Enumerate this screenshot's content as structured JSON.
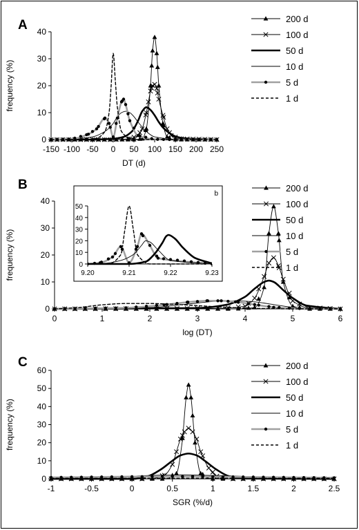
{
  "colors": {
    "background": "#ffffff",
    "ink": "#000000",
    "gray_series": "#a0a0a0",
    "dark_gray_series": "#808080"
  },
  "legend_items": [
    "200 d",
    "100 d",
    "50 d",
    "10 d",
    "5 d",
    "1 d"
  ],
  "chart_data": [
    {
      "panel": "A",
      "type": "line",
      "xlabel": "DT (d)",
      "ylabel": "frequency (%)",
      "xlim": [
        -150,
        250
      ],
      "ylim": [
        0,
        40
      ],
      "xticks": [
        -150,
        -100,
        -50,
        0,
        50,
        100,
        150,
        200,
        250
      ],
      "yticks": [
        0,
        10,
        20,
        30,
        40
      ],
      "legend_position": "top-right",
      "series": [
        {
          "name": "200 d",
          "style": "thin-black-triangle",
          "x": [
            -150,
            20,
            50,
            70,
            80,
            90,
            95,
            100,
            105,
            110,
            120,
            130,
            150,
            250
          ],
          "y": [
            0,
            0,
            0,
            0.3,
            4,
            20,
            33,
            38,
            32,
            20,
            6,
            1,
            0,
            0
          ]
        },
        {
          "name": "100 d",
          "style": "thin-black-cross",
          "x": [
            -150,
            0,
            40,
            60,
            70,
            80,
            85,
            90,
            95,
            100,
            105,
            110,
            120,
            130,
            140,
            160,
            250
          ],
          "y": [
            0,
            0,
            0.3,
            1.5,
            4,
            10,
            14,
            18,
            20,
            20.5,
            19,
            15,
            9,
            4,
            1.5,
            0.3,
            0
          ]
        },
        {
          "name": "50 d",
          "style": "thick-black",
          "x": [
            -150,
            -50,
            0,
            25,
            45,
            60,
            70,
            80,
            90,
            100,
            110,
            120,
            135,
            150,
            170,
            200,
            250
          ],
          "y": [
            0,
            0,
            0.3,
            1,
            3,
            7,
            10.5,
            12,
            11,
            9,
            6.5,
            4.5,
            2.5,
            1.2,
            0.5,
            0.2,
            0
          ]
        },
        {
          "name": "10 d",
          "style": "thin-black",
          "x": [
            -150,
            -100,
            -50,
            -20,
            0,
            10,
            20,
            30,
            40,
            50,
            60,
            80,
            100,
            150,
            250
          ],
          "y": [
            0,
            0.2,
            1,
            3,
            6,
            8.5,
            10,
            10.5,
            10,
            8.5,
            6.5,
            3,
            1,
            0.1,
            0
          ]
        },
        {
          "name": "5 d",
          "style": "gray-thick-dots",
          "x": [
            -150,
            -100,
            -60,
            -40,
            -20,
            -10,
            0,
            10,
            20,
            25,
            30,
            40,
            60,
            100,
            150,
            250
          ],
          "y": [
            0,
            0.2,
            2,
            4,
            8,
            6,
            1,
            8,
            14,
            15,
            13,
            7,
            1.5,
            0.1,
            0,
            0
          ]
        },
        {
          "name": "1 d",
          "style": "dashed-black",
          "x": [
            -150,
            -60,
            -40,
            -20,
            -10,
            -5,
            0,
            5,
            10,
            20,
            40,
            60,
            250
          ],
          "y": [
            0,
            0,
            0.5,
            3,
            10,
            20,
            32,
            22,
            12,
            3,
            0.5,
            0,
            0
          ]
        }
      ]
    },
    {
      "panel": "B",
      "type": "line",
      "xlabel": "log (DT)",
      "ylabel": "frequency (%)",
      "xlim": [
        0,
        6
      ],
      "ylim": [
        0,
        40
      ],
      "xticks": [
        0,
        1,
        2,
        3,
        4,
        5,
        6
      ],
      "yticks": [
        0,
        10,
        20,
        30,
        40
      ],
      "legend_position": "top-right",
      "series": [
        {
          "name": "200 d",
          "style": "thin-black-triangle",
          "x": [
            0,
            3.8,
            4.2,
            4.4,
            4.5,
            4.6,
            4.7,
            4.8,
            5.0,
            5.3,
            6
          ],
          "y": [
            0,
            0,
            0.5,
            8,
            28,
            38,
            28,
            10,
            1,
            0,
            0
          ]
        },
        {
          "name": "100 d",
          "style": "thin-black-cross",
          "x": [
            0,
            3.5,
            4.0,
            4.2,
            4.4,
            4.5,
            4.6,
            4.7,
            4.8,
            5.0,
            5.3,
            6
          ],
          "y": [
            0,
            0.2,
            1,
            4,
            12,
            17,
            19,
            16,
            11,
            3,
            0.5,
            0
          ]
        },
        {
          "name": "50 d",
          "style": "thick-black",
          "x": [
            0,
            3.0,
            3.6,
            4.0,
            4.2,
            4.4,
            4.5,
            4.6,
            4.8,
            5.0,
            5.3,
            6
          ],
          "y": [
            0,
            0.3,
            1.5,
            4.5,
            7.5,
            10,
            10.5,
            10,
            7,
            4,
            1.2,
            0
          ]
        },
        {
          "name": "10 d",
          "style": "thin-black",
          "x": [
            0,
            2.0,
            2.8,
            3.4,
            3.8,
            4.2,
            4.6,
            5.0,
            5.5,
            6
          ],
          "y": [
            0,
            0.5,
            1.8,
            2.8,
            3,
            2.6,
            1.6,
            0.6,
            0.1,
            0
          ]
        },
        {
          "name": "5 d",
          "style": "gray-thick-dots",
          "x": [
            0,
            1.5,
            2.3,
            2.8,
            3.2,
            3.5,
            3.8,
            4.2,
            4.6,
            5.0,
            5.5,
            6
          ],
          "y": [
            0,
            0.4,
            1.5,
            2.5,
            3,
            3,
            2.6,
            1.6,
            0.6,
            0.2,
            0,
            0
          ]
        },
        {
          "name": "1 d",
          "style": "dashed-black",
          "x": [
            0,
            0.5,
            1.0,
            1.5,
            2.0,
            2.5,
            3.0,
            3.5,
            4.0,
            4.5,
            5.0,
            6
          ],
          "y": [
            0,
            0.5,
            1.5,
            2,
            2,
            1.7,
            1.2,
            0.7,
            0.3,
            0.1,
            0,
            0
          ]
        }
      ],
      "inset": {
        "label": "b",
        "xlim": [
          9.2,
          9.23
        ],
        "ylim": [
          0,
          50
        ],
        "xticks": [
          "9.20",
          "9.21",
          "9.22",
          "9.23"
        ],
        "yticks": [
          0,
          10,
          20,
          30,
          40,
          50
        ],
        "series": [
          {
            "name": "1 d",
            "style": "dashed-black",
            "x": [
              9.2,
              9.205,
              9.208,
              9.209,
              9.21,
              9.211,
              9.212,
              9.215,
              9.23
            ],
            "y": [
              0,
              0,
              8,
              30,
              50,
              30,
              8,
              0,
              0
            ]
          },
          {
            "name": "5 d",
            "style": "gray-thick-dots",
            "x": [
              9.2,
              9.203,
              9.206,
              9.208,
              9.21,
              9.212,
              9.213,
              9.215,
              9.217,
              9.23
            ],
            "y": [
              0,
              1,
              6,
              15,
              1,
              15,
              26,
              16,
              5,
              0
            ]
          },
          {
            "name": "10 d",
            "style": "thin-black",
            "x": [
              9.2,
              9.204,
              9.208,
              9.211,
              9.213,
              9.214,
              9.215,
              9.217,
              9.22,
              9.23
            ],
            "y": [
              0,
              0.5,
              3,
              8,
              16,
              20,
              19,
              12,
              3,
              0
            ]
          },
          {
            "name": "50 d",
            "style": "thick-black",
            "x": [
              9.2,
              9.21,
              9.214,
              9.216,
              9.218,
              9.219,
              9.2195,
              9.221,
              9.223,
              9.226,
              9.23
            ],
            "y": [
              0,
              0,
              2,
              8,
              18,
              24,
              25,
              22,
              14,
              5,
              0.5
            ]
          }
        ]
      }
    },
    {
      "panel": "C",
      "type": "line",
      "xlabel": "SGR (%/d)",
      "ylabel": "frequency (%)",
      "xlim": [
        -1,
        2.5
      ],
      "ylim": [
        0,
        60
      ],
      "xticks": [
        -1,
        -0.5,
        0,
        0.5,
        1,
        1.5,
        2,
        2.5
      ],
      "yticks": [
        0,
        10,
        20,
        30,
        40,
        50,
        60
      ],
      "legend_position": "top-right",
      "series": [
        {
          "name": "200 d",
          "style": "thin-black-triangle",
          "x": [
            -1,
            0.4,
            0.55,
            0.62,
            0.67,
            0.7,
            0.73,
            0.78,
            0.85,
            1.0,
            2.5
          ],
          "y": [
            0,
            0,
            3,
            20,
            45,
            52,
            45,
            20,
            3,
            0,
            0
          ]
        },
        {
          "name": "100 d",
          "style": "thin-black-cross",
          "x": [
            -1,
            0.2,
            0.4,
            0.5,
            0.55,
            0.6,
            0.65,
            0.7,
            0.75,
            0.8,
            0.85,
            0.95,
            1.05,
            1.2,
            2.5
          ],
          "y": [
            0,
            0,
            2,
            8,
            15,
            22,
            26,
            28,
            26,
            22,
            15,
            6,
            1.5,
            0,
            0
          ]
        },
        {
          "name": "50 d",
          "style": "thick-black",
          "x": [
            -1,
            0,
            0.2,
            0.35,
            0.5,
            0.6,
            0.7,
            0.8,
            0.9,
            1.05,
            1.2,
            1.4,
            2.5
          ],
          "y": [
            0,
            0,
            1.5,
            5,
            10,
            13,
            14,
            13,
            10,
            5,
            1.5,
            0.2,
            0
          ]
        },
        {
          "name": "10 d",
          "style": "thin-black",
          "x": [
            -1,
            -0.5,
            0,
            0.3,
            0.6,
            0.9,
            1.3,
            1.8,
            2.5
          ],
          "y": [
            0.2,
            0.8,
            1.5,
            2,
            2.2,
            2,
            1.5,
            0.8,
            0.2
          ]
        },
        {
          "name": "5 d",
          "style": "gray-thick-dots",
          "x": [
            -1,
            -0.5,
            0,
            0.5,
            1.0,
            1.5,
            2.0,
            2.5
          ],
          "y": [
            0.8,
            1,
            1.2,
            1.3,
            1.2,
            1,
            0.8,
            0.6
          ]
        },
        {
          "name": "1 d",
          "style": "dashed-black",
          "x": [
            -1,
            0,
            1,
            2,
            2.5
          ],
          "y": [
            0.3,
            0.3,
            0.3,
            0.3,
            0.3
          ]
        }
      ]
    }
  ]
}
